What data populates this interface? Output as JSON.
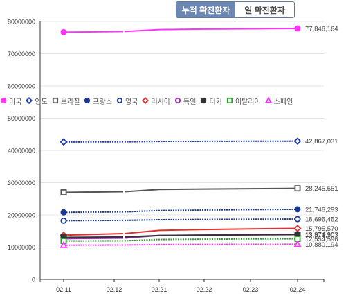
{
  "tabs": [
    {
      "label": "누적 확진환자",
      "active": true
    },
    {
      "label": "일 확진환자",
      "active": false
    }
  ],
  "chart_data": {
    "type": "line",
    "categories": [
      "02.11",
      "02.12",
      "02.21",
      "02.22",
      "02.23",
      "02.24"
    ],
    "ylim": [
      0,
      80000000
    ],
    "yticks": [
      {
        "value": 0,
        "label": "0"
      },
      {
        "value": 10000000,
        "label": "10000000"
      },
      {
        "value": 20000000,
        "label": "20000000"
      },
      {
        "value": 30000000,
        "label": "30000000"
      },
      {
        "value": 40000000,
        "label": "40000000"
      },
      {
        "value": 50000000,
        "label": "50000000"
      },
      {
        "value": 60000000,
        "label": "60000000"
      },
      {
        "value": 70000000,
        "label": "70000000"
      },
      {
        "value": 80000000,
        "label": "80000000"
      }
    ],
    "grid": true,
    "legend_position": "middle",
    "series": [
      {
        "name": "미국",
        "marker": "filled-circle",
        "color": "#ff33ff",
        "dash": "solid",
        "values": [
          76700000,
          76900000,
          77500000,
          77650000,
          77750000,
          77846164
        ],
        "end_label": "77,846,164"
      },
      {
        "name": "인도",
        "marker": "open-diamond",
        "color": "#1f3fb5",
        "dash": "dotted",
        "values": [
          42600000,
          42650000,
          42780000,
          42810000,
          42840000,
          42867031
        ],
        "end_label": "42,867,031"
      },
      {
        "name": "브라질",
        "marker": "open-square",
        "color": "#555555",
        "dash": "solid",
        "values": [
          27000000,
          27200000,
          27900000,
          28050000,
          28150000,
          28245551
        ],
        "end_label": "28,245,551"
      },
      {
        "name": "프랑스",
        "marker": "filled-circle",
        "color": "#1a3a8f",
        "dash": "dotted",
        "values": [
          20800000,
          20950000,
          21350000,
          21500000,
          21630000,
          21746293
        ],
        "end_label": "21,746,293"
      },
      {
        "name": "영국",
        "marker": "open-circle",
        "color": "#1a3a8f",
        "dash": "dotted",
        "values": [
          18200000,
          18300000,
          18500000,
          18580000,
          18640000,
          18695452
        ],
        "end_label": "18,695,452"
      },
      {
        "name": "러시아",
        "marker": "open-diamond",
        "color": "#e03030",
        "dash": "solid",
        "values": [
          13700000,
          14200000,
          15200000,
          15450000,
          15650000,
          15795570
        ],
        "end_label": "15,795,570"
      },
      {
        "name": "독일",
        "marker": "open-circle",
        "color": "#9a2fb0",
        "dash": "solid",
        "values": [
          12600000,
          12800000,
          13600000,
          13750000,
          13870000,
          13974903
        ],
        "end_label": "13,974,903"
      },
      {
        "name": "터키",
        "marker": "filled-square",
        "color": "#333333",
        "dash": "solid",
        "values": [
          13000000,
          13150000,
          13600000,
          13720000,
          13800000,
          13871907
        ],
        "end_label": "13,871,907"
      },
      {
        "name": "이탈리아",
        "marker": "open-square",
        "color": "#2e9e2e",
        "dash": "dotted",
        "values": [
          11900000,
          11950000,
          12350000,
          12450000,
          12520000,
          12554596
        ],
        "end_label": "12,554,596"
      },
      {
        "name": "스페인",
        "marker": "open-triangle",
        "color": "#ff33ff",
        "dash": "dotted",
        "values": [
          10600000,
          10650000,
          10800000,
          10830000,
          10860000,
          10880194
        ],
        "end_label": "10,880,194"
      }
    ]
  }
}
